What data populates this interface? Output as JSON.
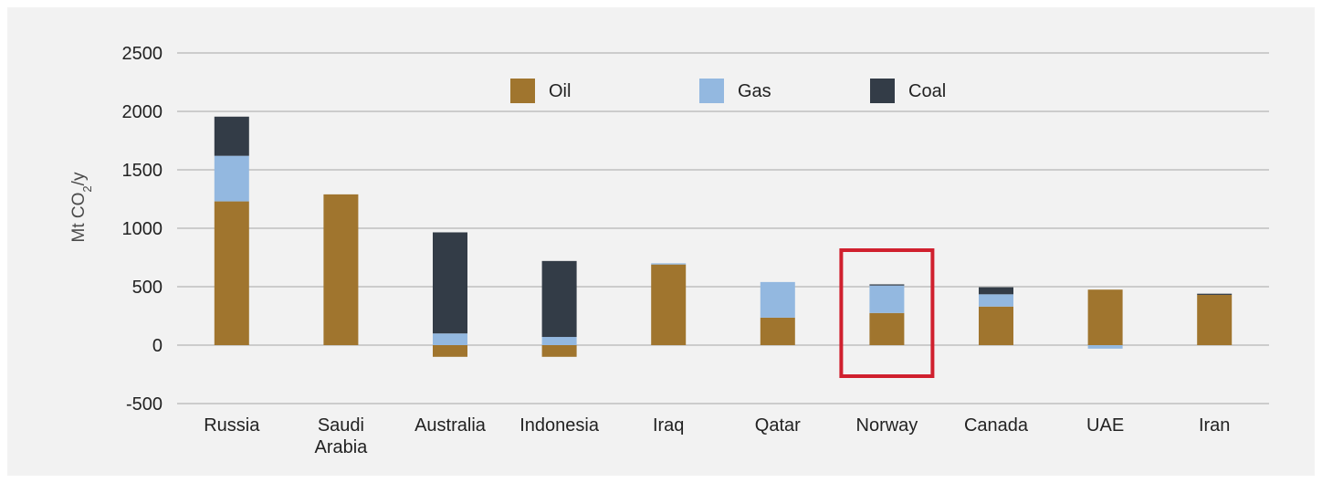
{
  "chart_data": {
    "type": "bar",
    "stacked": true,
    "ylabel": "Mt CO2/y",
    "ylabel_parts": {
      "pre": "Mt CO",
      "sub": "2",
      "post": "/y"
    },
    "ylim": [
      -500,
      2500
    ],
    "yticks": [
      -500,
      0,
      500,
      1000,
      1500,
      2000,
      2500
    ],
    "grid": true,
    "legend_position": "top-center",
    "categories": [
      "Russia",
      "Saudi Arabia",
      "Australia",
      "Indonesia",
      "Iraq",
      "Qatar",
      "Norway",
      "Canada",
      "UAE",
      "Iran"
    ],
    "category_label_lines": [
      [
        "Russia"
      ],
      [
        "Saudi",
        "Arabia"
      ],
      [
        "Australia"
      ],
      [
        "Indonesia"
      ],
      [
        "Iraq"
      ],
      [
        "Qatar"
      ],
      [
        "Norway"
      ],
      [
        "Canada"
      ],
      [
        "UAE"
      ],
      [
        "Iran"
      ]
    ],
    "series": [
      {
        "name": "Oil",
        "color": "#a0752e",
        "values": [
          1230,
          1290,
          -100,
          -100,
          690,
          235,
          275,
          330,
          475,
          430
        ]
      },
      {
        "name": "Gas",
        "color": "#93b8e0",
        "values": [
          390,
          0,
          100,
          70,
          10,
          305,
          235,
          105,
          -30,
          0
        ]
      },
      {
        "name": "Coal",
        "color": "#333c47",
        "values": [
          335,
          0,
          865,
          650,
          0,
          0,
          10,
          60,
          0,
          10
        ]
      }
    ],
    "highlight": {
      "category": "Norway",
      "color": "#d0202e"
    }
  }
}
